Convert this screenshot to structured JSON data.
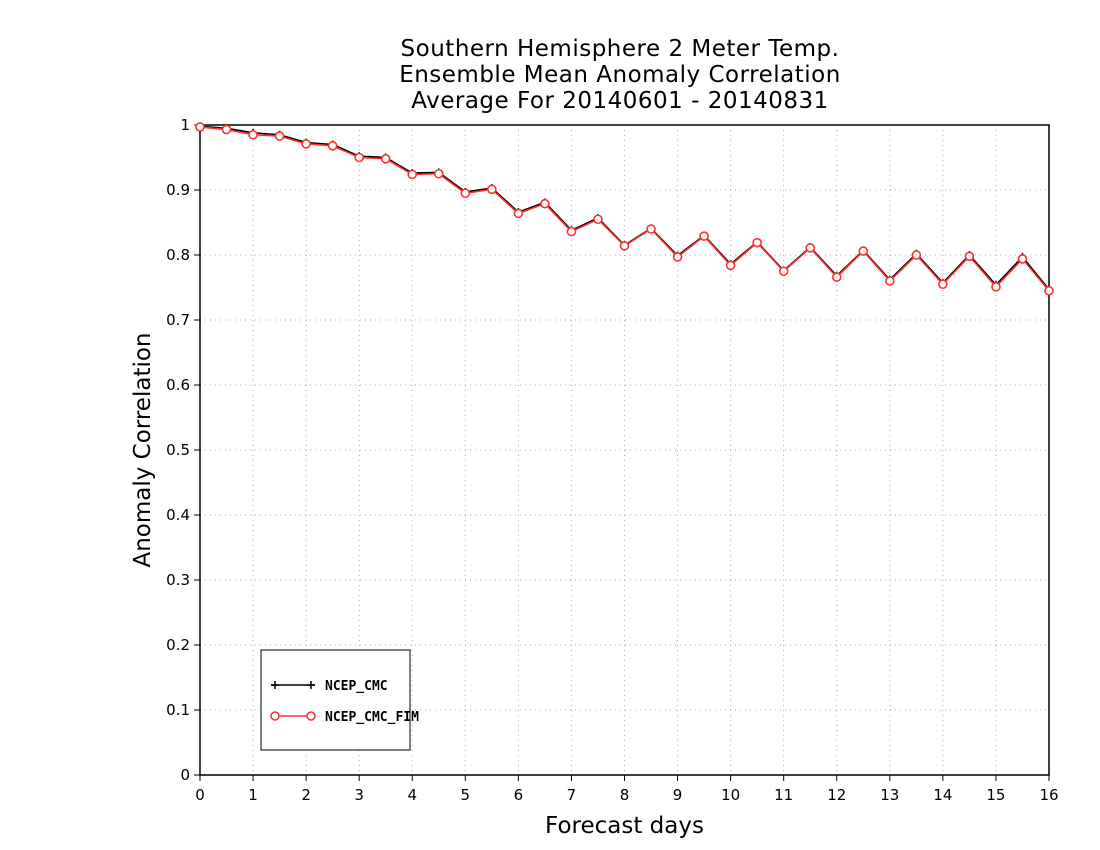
{
  "chart_data": {
    "type": "line",
    "title_lines": [
      "Southern Hemisphere 2 Meter Temp.",
      "Ensemble Mean Anomaly Correlation",
      "Average For 20140601 - 20140831"
    ],
    "xlabel": "Forecast days",
    "ylabel": "Anomaly Correlation",
    "xlim": [
      0,
      16
    ],
    "ylim": [
      0,
      1
    ],
    "x_ticks": [
      0,
      1,
      2,
      3,
      4,
      5,
      6,
      7,
      8,
      9,
      10,
      11,
      12,
      13,
      14,
      15,
      16
    ],
    "y_ticks": [
      0,
      0.1,
      0.2,
      0.3,
      0.4,
      0.5,
      0.6,
      0.7,
      0.8,
      0.9,
      1
    ],
    "y_tick_labels": [
      "0",
      "0.1",
      "0.2",
      "0.3",
      "0.4",
      "0.5",
      "0.6",
      "0.7",
      "0.8",
      "0.9",
      "1"
    ],
    "grid": true,
    "legend_position": "bottom-left",
    "x": [
      0,
      0.5,
      1,
      1.5,
      2,
      2.5,
      3,
      3.5,
      4,
      4.5,
      5,
      5.5,
      6,
      6.5,
      7,
      7.5,
      8,
      8.5,
      9,
      9.5,
      10,
      10.5,
      11,
      11.5,
      12,
      12.5,
      13,
      13.5,
      14,
      14.5,
      15,
      15.5,
      16
    ],
    "series": [
      {
        "name": "NCEP_CMC",
        "color": "#000000",
        "marker": "plus",
        "values": [
          0.998,
          0.995,
          0.988,
          0.985,
          0.973,
          0.97,
          0.952,
          0.95,
          0.926,
          0.927,
          0.897,
          0.903,
          0.866,
          0.881,
          0.838,
          0.857,
          0.815,
          0.841,
          0.799,
          0.83,
          0.786,
          0.82,
          0.776,
          0.812,
          0.768,
          0.807,
          0.762,
          0.802,
          0.757,
          0.8,
          0.754,
          0.797,
          0.747
        ]
      },
      {
        "name": "NCEP_CMC_FIM",
        "color": "#ff3030",
        "marker": "circle",
        "values": [
          0.997,
          0.993,
          0.985,
          0.983,
          0.971,
          0.968,
          0.95,
          0.948,
          0.924,
          0.925,
          0.895,
          0.901,
          0.864,
          0.879,
          0.836,
          0.855,
          0.814,
          0.84,
          0.797,
          0.829,
          0.784,
          0.819,
          0.775,
          0.811,
          0.766,
          0.806,
          0.76,
          0.8,
          0.755,
          0.798,
          0.751,
          0.794,
          0.745
        ]
      }
    ]
  }
}
